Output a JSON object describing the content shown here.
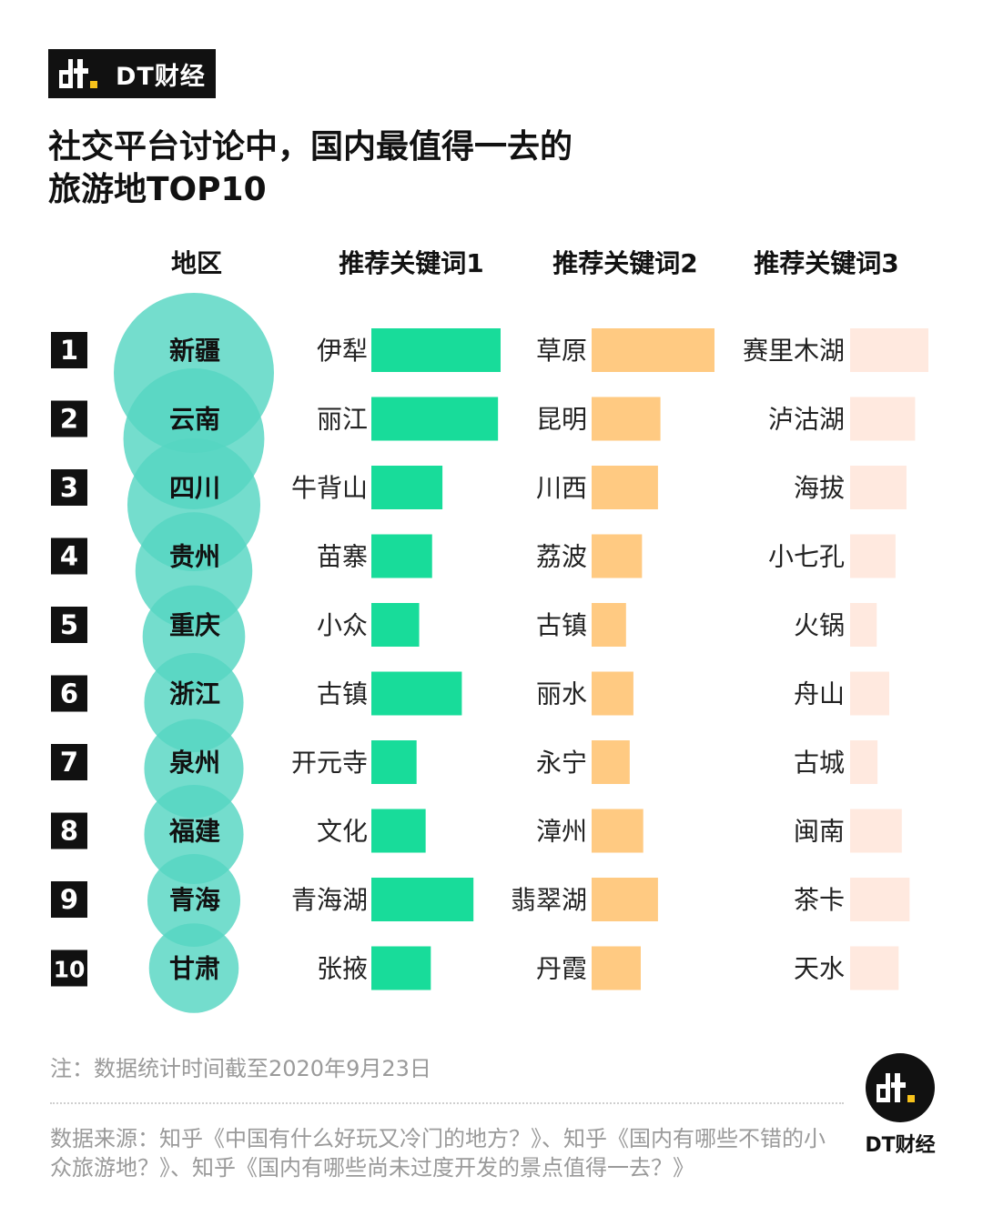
{
  "brand": {
    "name": "DT财经"
  },
  "title_line1": "社交平台讨论中，国内最值得一去的",
  "title_line2": "旅游地TOP10",
  "chart_data": {
    "type": "table",
    "columns": [
      "地区",
      "推荐关键词1",
      "推荐关键词2",
      "推荐关键词3"
    ],
    "rows": [
      {
        "rank": "1",
        "region": "新疆",
        "region_size": 100,
        "k1": "伊犁",
        "v1": 100,
        "k2": "草原",
        "v2": 100,
        "k3": "赛里木湖",
        "v3": 100
      },
      {
        "rank": "2",
        "region": "云南",
        "region_size": 88,
        "k1": "丽江",
        "v1": 98,
        "k2": "昆明",
        "v2": 56,
        "k3": "泸沽湖",
        "v3": 83
      },
      {
        "rank": "3",
        "region": "四川",
        "region_size": 83,
        "k1": "牛背山",
        "v1": 55,
        "k2": "川西",
        "v2": 54,
        "k3": "海拔",
        "v3": 72
      },
      {
        "rank": "4",
        "region": "贵州",
        "region_size": 73,
        "k1": "苗寨",
        "v1": 47,
        "k2": "荔波",
        "v2": 41,
        "k3": "小七孔",
        "v3": 58
      },
      {
        "rank": "5",
        "region": "重庆",
        "region_size": 64,
        "k1": "小众",
        "v1": 37,
        "k2": "古镇",
        "v2": 28,
        "k3": "火锅",
        "v3": 34
      },
      {
        "rank": "6",
        "region": "浙江",
        "region_size": 62,
        "k1": "古镇",
        "v1": 70,
        "k2": "丽水",
        "v2": 34,
        "k3": "舟山",
        "v3": 50
      },
      {
        "rank": "7",
        "region": "泉州",
        "region_size": 62,
        "k1": "开元寺",
        "v1": 35,
        "k2": "永宁",
        "v2": 31,
        "k3": "古城",
        "v3": 35
      },
      {
        "rank": "8",
        "region": "福建",
        "region_size": 62,
        "k1": "文化",
        "v1": 42,
        "k2": "漳州",
        "v2": 42,
        "k3": "闽南",
        "v3": 66
      },
      {
        "rank": "9",
        "region": "青海",
        "region_size": 58,
        "k1": "青海湖",
        "v1": 79,
        "k2": "翡翠湖",
        "v2": 54,
        "k3": "茶卡",
        "v3": 76
      },
      {
        "rank": "10",
        "region": "甘肃",
        "region_size": 56,
        "k1": "张掖",
        "v1": 46,
        "k2": "丹霞",
        "v2": 40,
        "k3": "天水",
        "v3": 62
      }
    ],
    "colors": {
      "bubble": "#55d6c2",
      "bar1": "#18dc9a",
      "bar2": "#ffca82",
      "bar3": "#ffe9df"
    }
  },
  "note": "注：数据统计时间截至2020年9月23日",
  "source": "数据来源：知乎《中国有什么好玩又冷门的地方？》、知乎《国内有哪些不错的小众旅游地？》、知乎《国内有哪些尚未过度开发的景点值得一去？》",
  "footer_brand": "DT财经"
}
